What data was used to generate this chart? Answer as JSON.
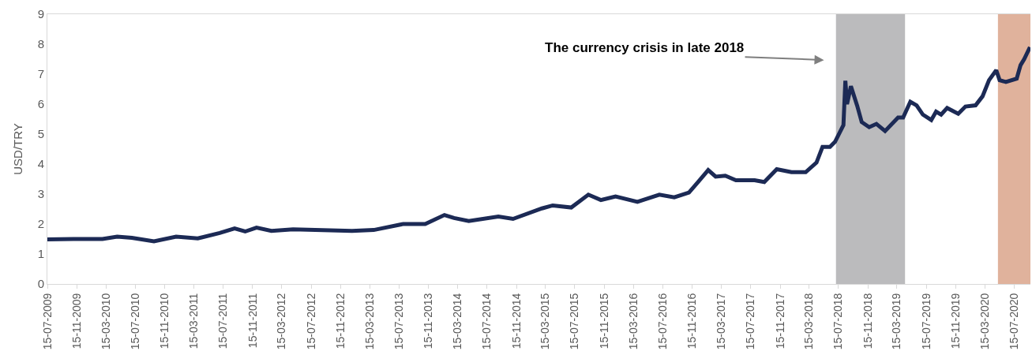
{
  "chart_data": {
    "type": "line",
    "ylabel": "USD/TRY",
    "x": [
      "2009-07-15",
      "2009-11-01",
      "2010-03-01",
      "2010-05-01",
      "2010-07-01",
      "2010-10-01",
      "2011-01-01",
      "2011-04-01",
      "2011-07-01",
      "2011-09-01",
      "2011-10-15",
      "2011-12-01",
      "2012-02-01",
      "2012-05-01",
      "2013-01-01",
      "2013-04-01",
      "2013-08-01",
      "2013-11-01",
      "2014-01-20",
      "2014-03-01",
      "2014-05-01",
      "2014-09-01",
      "2014-11-01",
      "2015-03-01",
      "2015-04-15",
      "2015-07-01",
      "2015-09-10",
      "2015-11-01",
      "2016-01-01",
      "2016-04-01",
      "2016-07-01",
      "2016-09-01",
      "2016-11-01",
      "2016-12-10",
      "2017-01-20",
      "2017-02-20",
      "2017-04-01",
      "2017-05-15",
      "2017-08-01",
      "2017-09-10",
      "2017-11-01",
      "2018-01-01",
      "2018-03-01",
      "2018-04-15",
      "2018-05-10",
      "2018-06-10",
      "2018-07-01",
      "2018-08-05",
      "2018-08-13",
      "2018-08-20",
      "2018-09-05",
      "2018-10-01",
      "2018-10-20",
      "2018-11-20",
      "2018-12-20",
      "2019-01-25",
      "2019-03-20",
      "2019-04-10",
      "2019-05-10",
      "2019-06-05",
      "2019-07-01",
      "2019-08-05",
      "2019-08-25",
      "2019-09-15",
      "2019-10-10",
      "2019-11-25",
      "2019-12-25",
      "2020-02-05",
      "2020-03-05",
      "2020-04-01",
      "2020-05-01",
      "2020-05-15",
      "2020-06-10",
      "2020-07-25",
      "2020-08-10",
      "2020-08-25",
      "2020-09-18"
    ],
    "series": [
      {
        "color": "#1c2a55",
        "values": [
          1.49,
          1.5,
          1.5,
          1.58,
          1.54,
          1.42,
          1.58,
          1.52,
          1.7,
          1.85,
          1.75,
          1.88,
          1.77,
          1.82,
          1.77,
          1.8,
          2.0,
          2.0,
          2.3,
          2.2,
          2.1,
          2.25,
          2.17,
          2.52,
          2.62,
          2.55,
          2.98,
          2.8,
          2.92,
          2.74,
          2.98,
          2.89,
          3.05,
          3.41,
          3.8,
          3.58,
          3.61,
          3.46,
          3.46,
          3.4,
          3.83,
          3.73,
          3.73,
          4.05,
          4.57,
          4.57,
          4.74,
          5.3,
          6.78,
          6.0,
          6.6,
          5.95,
          5.4,
          5.23,
          5.34,
          5.1,
          5.55,
          5.55,
          6.08,
          5.96,
          5.65,
          5.47,
          5.75,
          5.65,
          5.87,
          5.68,
          5.92,
          5.96,
          6.26,
          6.8,
          7.13,
          6.8,
          6.74,
          6.85,
          7.3,
          7.5,
          7.9
        ]
      }
    ],
    "xlim": [
      "2009-07-15",
      "2020-09-20"
    ],
    "xticks": [
      {
        "value": "2009-07-15",
        "label": "15-07-2009"
      },
      {
        "value": "2009-11-15",
        "label": "15-11-2009"
      },
      {
        "value": "2010-03-15",
        "label": "15-03-2010"
      },
      {
        "value": "2010-07-15",
        "label": "15-07-2010"
      },
      {
        "value": "2010-11-15",
        "label": "15-11-2010"
      },
      {
        "value": "2011-03-15",
        "label": "15-03-2011"
      },
      {
        "value": "2011-07-15",
        "label": "15-07-2011"
      },
      {
        "value": "2011-11-15",
        "label": "15-11-2011"
      },
      {
        "value": "2012-03-15",
        "label": "15-03-2012"
      },
      {
        "value": "2012-07-15",
        "label": "15-07-2012"
      },
      {
        "value": "2012-11-15",
        "label": "15-11-2012"
      },
      {
        "value": "2013-03-15",
        "label": "15-03-2013"
      },
      {
        "value": "2013-07-15",
        "label": "15-07-2013"
      },
      {
        "value": "2013-11-15",
        "label": "15-11-2013"
      },
      {
        "value": "2014-03-15",
        "label": "15-03-2014"
      },
      {
        "value": "2014-07-15",
        "label": "15-07-2014"
      },
      {
        "value": "2014-11-15",
        "label": "15-11-2014"
      },
      {
        "value": "2015-03-15",
        "label": "15-03-2015"
      },
      {
        "value": "2015-07-15",
        "label": "15-07-2015"
      },
      {
        "value": "2015-11-15",
        "label": "15-11-2015"
      },
      {
        "value": "2016-03-15",
        "label": "15-03-2016"
      },
      {
        "value": "2016-07-15",
        "label": "15-07-2016"
      },
      {
        "value": "2016-11-15",
        "label": "15-11-2016"
      },
      {
        "value": "2017-03-15",
        "label": "15-03-2017"
      },
      {
        "value": "2017-07-15",
        "label": "15-07-2017"
      },
      {
        "value": "2017-11-15",
        "label": "15-11-2017"
      },
      {
        "value": "2018-03-15",
        "label": "15-03-2018"
      },
      {
        "value": "2018-07-15",
        "label": "15-07-2018"
      },
      {
        "value": "2018-11-15",
        "label": "15-11-2018"
      },
      {
        "value": "2019-03-15",
        "label": "15-03-2019"
      },
      {
        "value": "2019-07-15",
        "label": "15-07-2019"
      },
      {
        "value": "2019-11-15",
        "label": "15-11-2019"
      },
      {
        "value": "2020-03-15",
        "label": "15-03-2020"
      },
      {
        "value": "2020-07-15",
        "label": "15-07-2020"
      }
    ],
    "ylim": [
      0,
      9
    ],
    "yticks": [
      0,
      1,
      2,
      3,
      4,
      5,
      6,
      7,
      8,
      9
    ],
    "bands": [
      {
        "axis": "x",
        "from": "2018-07-05",
        "to": "2019-04-18",
        "color": "#bbbbbd"
      },
      {
        "axis": "x",
        "from": "2020-05-08",
        "to": "2020-09-20",
        "color": "#e0b29c"
      }
    ],
    "annotations": [
      "The currency crisis in late 2018"
    ],
    "grid": false,
    "marker": "none",
    "line_style": "solid"
  }
}
